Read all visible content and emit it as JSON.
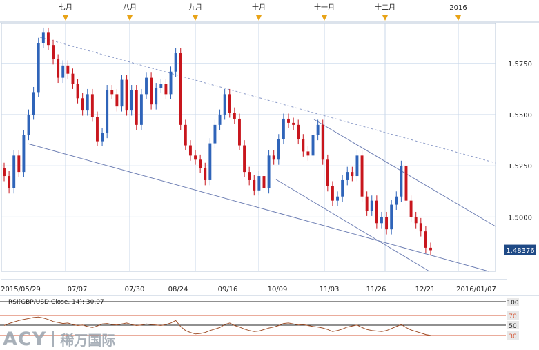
{
  "chart_data": {
    "type": "candlestick",
    "pair": "GBP/USD",
    "top_month_labels": [
      "七月",
      "八月",
      "九月",
      "十月",
      "十一月",
      "十二月",
      "2016"
    ],
    "x_tick_labels": [
      "2015/05/29",
      "07/07",
      "07/30",
      "08/24",
      "09/16",
      "10/09",
      "11/03",
      "11/26",
      "12/21",
      "2016/01/07"
    ],
    "y_tick_labels": [
      "1.5750",
      "1.5500",
      "1.5250",
      "1.5000"
    ],
    "y_ticks": [
      1.575,
      1.55,
      1.525,
      1.5
    ],
    "ylim": [
      1.4735,
      1.5945
    ],
    "last_price_label": "1.48376",
    "last_price": 1.48376,
    "candles_close": [
      1.52,
      1.514,
      1.53,
      1.522,
      1.54,
      1.55,
      1.561,
      1.585,
      1.59,
      1.584,
      1.577,
      1.568,
      1.574,
      1.57,
      1.565,
      1.558,
      1.552,
      1.56,
      1.549,
      1.537,
      1.541,
      1.562,
      1.56,
      1.554,
      1.567,
      1.552,
      1.562,
      1.545,
      1.56,
      1.568,
      1.555,
      1.563,
      1.565,
      1.56,
      1.571,
      1.58,
      1.545,
      1.535,
      1.53,
      1.528,
      1.524,
      1.518,
      1.536,
      1.545,
      1.55,
      1.56,
      1.551,
      1.548,
      1.535,
      1.522,
      1.518,
      1.513,
      1.52,
      1.514,
      1.53,
      1.528,
      1.538,
      1.548,
      1.546,
      1.545,
      1.538,
      1.532,
      1.53,
      1.54,
      1.545,
      1.528,
      1.515,
      1.508,
      1.51,
      1.518,
      1.522,
      1.52,
      1.53,
      1.51,
      1.503,
      1.508,
      1.497,
      1.5,
      1.494,
      1.506,
      1.51,
      1.525,
      1.508,
      1.5,
      1.497,
      1.493,
      1.485,
      1.4838
    ],
    "rsi": {
      "label": "RSI(GBP/USD.Close, 14): 30.07",
      "levels_labels": [
        "100",
        "70",
        "50",
        "30"
      ],
      "levels": [
        100,
        70,
        50,
        30
      ],
      "values": [
        50,
        54,
        57,
        60,
        62,
        64,
        66,
        67,
        65,
        62,
        58,
        56,
        54,
        55,
        52,
        50,
        51,
        48,
        46,
        49,
        53,
        54,
        52,
        51,
        53,
        55,
        52,
        50,
        51,
        53,
        52,
        51,
        50,
        52,
        55,
        60,
        48,
        40,
        36,
        33,
        34,
        36,
        40,
        43,
        46,
        52,
        55,
        50,
        47,
        43,
        40,
        38,
        39,
        42,
        45,
        47,
        50,
        54,
        55,
        53,
        51,
        52,
        50,
        48,
        47,
        45,
        42,
        38,
        40,
        43,
        47,
        49,
        51,
        46,
        42,
        40,
        39,
        38,
        40,
        44,
        48,
        52,
        46,
        41,
        38,
        35,
        32,
        30.07
      ]
    }
  },
  "colors": {
    "up": "#2f64b9",
    "down": "#c8161d",
    "trend_solid": "#6e7fb4",
    "trend_dashed": "#8a9ac8",
    "grid": "#c8d7ea",
    "rsi_line": "#a0522d",
    "rsi_bound": "#d65a3a",
    "marker": "#e8a317",
    "axis_text": "#222222",
    "last_price_bg": "#1f4a86"
  },
  "branding": {
    "logo_mark": "ACY",
    "logo_cn": "稀万国际"
  }
}
